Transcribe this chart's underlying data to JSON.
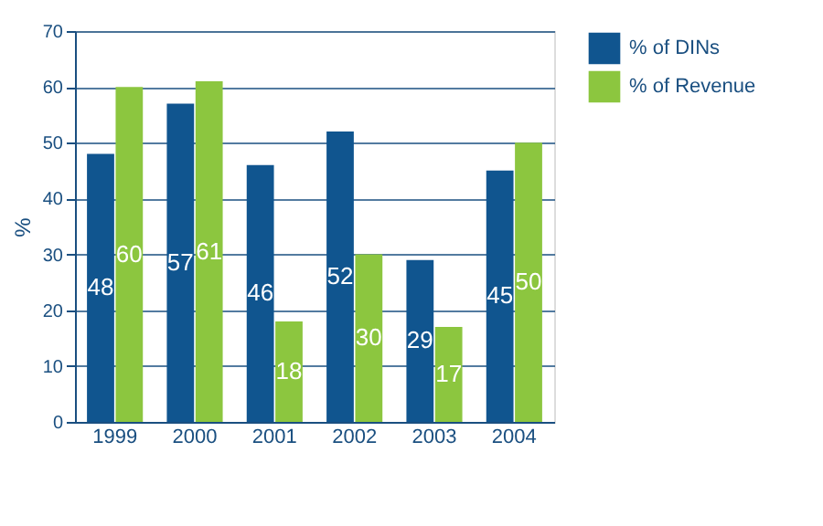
{
  "chart_data": {
    "type": "bar",
    "ylabel": "%",
    "categories": [
      "1999",
      "2000",
      "2001",
      "2002",
      "2003",
      "2004"
    ],
    "series": [
      {
        "name": "% of DINs",
        "color": "#10558f",
        "values": [
          48,
          57,
          46,
          52,
          29,
          45
        ]
      },
      {
        "name": "% of Revenue",
        "color": "#8cc63f",
        "values": [
          60,
          61,
          18,
          30,
          17,
          50
        ]
      }
    ],
    "ylim": [
      0,
      70
    ],
    "yticks": [
      0,
      10,
      20,
      30,
      40,
      50,
      60,
      70
    ],
    "grid": "y",
    "legend": "top right",
    "data_labels": true
  }
}
